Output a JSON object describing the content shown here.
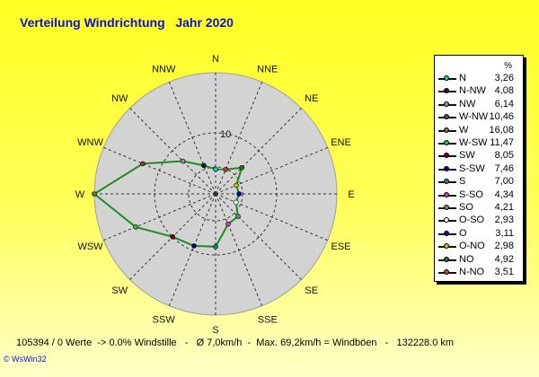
{
  "title": "Verteilung Windrichtung   Jahr 2020",
  "footer": "105394 / 0 Werte  -> 0.0% Windstille   -   Ø 7,0km/h  -  Max. 69,2km/h = Windböen   -   132228.0 km",
  "credit": "© WsWin32",
  "legend_unit": "%",
  "colors": {
    "grid_fill": "#d3d3d3",
    "line": "#228b22"
  },
  "chart_data": {
    "type": "radar",
    "title": "Verteilung Windrichtung   Jahr 2020",
    "direction_labels": [
      "N",
      "NNE",
      "NE",
      "ENE",
      "E",
      "ESE",
      "SE",
      "SSE",
      "S",
      "SSW",
      "SW",
      "WSW",
      "W",
      "WNW",
      "NW",
      "NNW"
    ],
    "radial_tick_label": "10",
    "rmax": 16.08,
    "grid": true,
    "legend_position": "right",
    "series": [
      {
        "name": "N",
        "value": "3,26",
        "dir": 0,
        "color": "#20c0c0"
      },
      {
        "name": "N-NW",
        "value": "4,08",
        "dir": 337.5,
        "color": "#003030"
      },
      {
        "name": "NW",
        "value": "6,14",
        "dir": 315,
        "color": "#909090"
      },
      {
        "name": "W-NW",
        "value": "10,46",
        "dir": 292.5,
        "color": "#804040"
      },
      {
        "name": "W",
        "value": "16,08",
        "dir": 270,
        "color": "#608020"
      },
      {
        "name": "W-SW",
        "value": "11,47",
        "dir": 247.5,
        "color": "#30c030"
      },
      {
        "name": "SW",
        "value": "8,05",
        "dir": 225,
        "color": "#800000"
      },
      {
        "name": "S-SW",
        "value": "7,46",
        "dir": 202.5,
        "color": "#000080"
      },
      {
        "name": "S",
        "value": "7,00",
        "dir": 180,
        "color": "#208080"
      },
      {
        "name": "S-SO",
        "value": "4,34",
        "dir": 157.5,
        "color": "#c040c0"
      },
      {
        "name": "SO",
        "value": "4,21",
        "dir": 135,
        "color": "#509090"
      },
      {
        "name": "O-SO",
        "value": "2,93",
        "dir": 112.5,
        "color": "#ffffff"
      },
      {
        "name": "O",
        "value": "3,11",
        "dir": 90,
        "color": "#0000c0"
      },
      {
        "name": "O-NO",
        "value": "2,98",
        "dir": 67.5,
        "color": "#c0c000"
      },
      {
        "name": "NO",
        "value": "4,92",
        "dir": 45,
        "color": "#207020"
      },
      {
        "name": "N-NO",
        "value": "3,51",
        "dir": 22.5,
        "color": "#c04040"
      }
    ]
  }
}
